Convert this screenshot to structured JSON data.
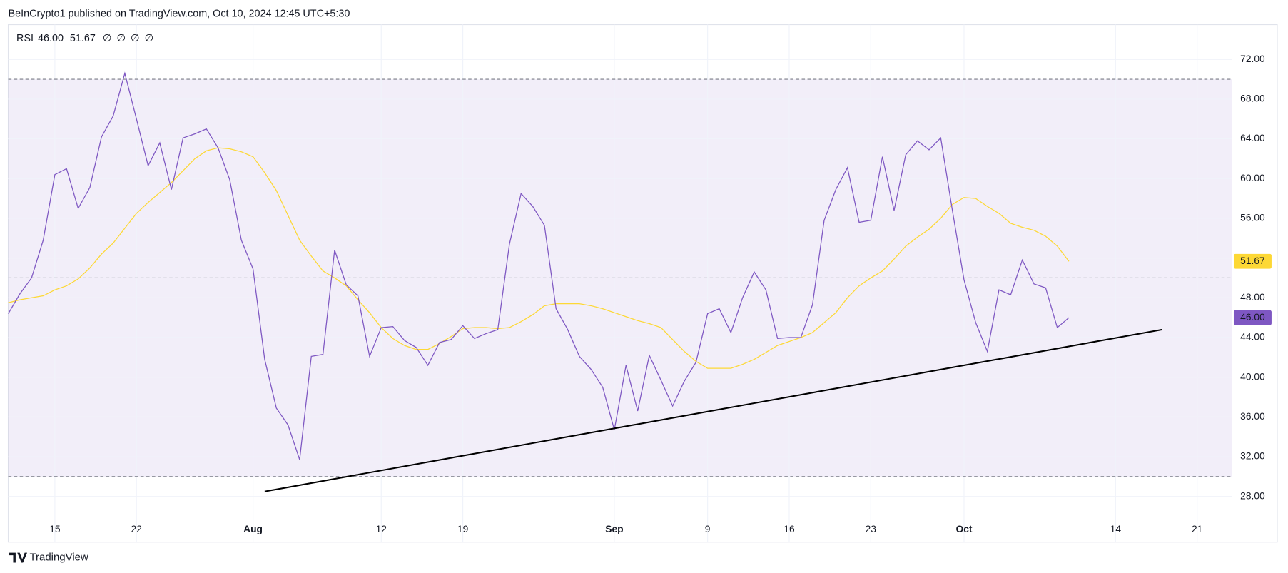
{
  "header": {
    "publisher": "BeInCrypto1 published on TradingView.com, Oct 10, 2024 12:45 UTC+5:30"
  },
  "legend": {
    "indicator": "RSI",
    "placeholders": [
      "∅",
      "∅",
      "∅",
      "∅"
    ]
  },
  "chart_data": {
    "type": "line",
    "x": [
      "07-11",
      "07-12",
      "07-13",
      "07-14",
      "07-15",
      "07-16",
      "07-17",
      "07-18",
      "07-19",
      "07-20",
      "07-21",
      "07-22",
      "07-23",
      "07-24",
      "07-25",
      "07-26",
      "07-27",
      "07-28",
      "07-29",
      "07-30",
      "07-31",
      "08-01",
      "08-02",
      "08-03",
      "08-04",
      "08-05",
      "08-06",
      "08-07",
      "08-08",
      "08-09",
      "08-10",
      "08-11",
      "08-12",
      "08-13",
      "08-14",
      "08-15",
      "08-16",
      "08-17",
      "08-18",
      "08-19",
      "08-20",
      "08-21",
      "08-22",
      "08-23",
      "08-24",
      "08-25",
      "08-26",
      "08-27",
      "08-28",
      "08-29",
      "08-30",
      "08-31",
      "09-01",
      "09-02",
      "09-03",
      "09-04",
      "09-05",
      "09-06",
      "09-07",
      "09-08",
      "09-09",
      "09-10",
      "09-11",
      "09-12",
      "09-13",
      "09-14",
      "09-15",
      "09-16",
      "09-17",
      "09-18",
      "09-19",
      "09-20",
      "09-21",
      "09-22",
      "09-23",
      "09-24",
      "09-25",
      "09-26",
      "09-27",
      "09-28",
      "09-29",
      "09-30",
      "10-01",
      "10-02",
      "10-03",
      "10-04",
      "10-05",
      "10-06",
      "10-07",
      "10-08",
      "10-09",
      "10-10"
    ],
    "series": [
      {
        "color": "#7e57c2",
        "values": [
          46.4,
          48.4,
          50.0,
          53.8,
          60.4,
          61.0,
          57.0,
          59.1,
          64.2,
          66.3,
          70.6,
          66.0,
          61.3,
          63.6,
          58.9,
          64.1,
          64.5,
          65.0,
          63.1,
          59.9,
          53.8,
          50.9,
          41.8,
          36.9,
          35.2,
          31.7,
          42.1,
          42.3,
          52.8,
          49.3,
          48.2,
          42.1,
          45.0,
          45.1,
          43.7,
          43.0,
          41.2,
          43.5,
          43.8,
          45.2,
          43.9,
          44.4,
          44.8,
          53.4,
          58.5,
          57.2,
          55.3,
          46.9,
          44.8,
          42.1,
          40.8,
          39.0,
          34.7,
          41.2,
          36.6,
          42.2,
          39.7,
          37.1,
          39.6,
          41.5,
          46.4,
          46.9,
          44.5,
          48.0,
          50.6,
          48.8,
          43.9,
          44.0,
          44.0,
          47.3,
          55.8,
          58.9,
          61.1,
          55.6,
          55.8,
          62.2,
          56.8,
          62.4,
          63.8,
          62.9,
          64.1,
          56.8,
          49.8,
          45.5,
          42.6,
          48.8,
          48.3,
          51.8,
          49.4,
          49.0,
          45.0,
          46
        ],
        "value_labels": [
          null,
          null,
          null,
          null,
          null,
          null,
          null,
          null,
          null,
          null,
          null,
          null,
          null,
          null,
          null,
          null,
          null,
          null,
          null,
          null,
          null,
          null,
          null,
          null,
          null,
          null,
          null,
          null,
          null,
          null,
          null,
          null,
          null,
          null,
          null,
          null,
          null,
          null,
          null,
          null,
          null,
          null,
          null,
          null,
          null,
          null,
          null,
          null,
          null,
          null,
          null,
          null,
          null,
          null,
          null,
          null,
          null,
          null,
          null,
          null,
          null,
          null,
          null,
          null,
          null,
          null,
          null,
          null,
          null,
          null,
          null,
          null,
          null,
          null,
          null,
          null,
          null,
          null,
          null,
          null,
          null,
          null,
          null,
          null,
          null,
          null,
          null,
          null,
          null,
          null,
          null,
          "46.00"
        ]
      },
      {
        "color": "#fdd835",
        "values": [
          47.5,
          47.8,
          48.0,
          48.2,
          48.8,
          49.2,
          49.9,
          51.0,
          52.4,
          53.5,
          55.0,
          56.5,
          57.6,
          58.6,
          59.6,
          60.8,
          62.0,
          62.8,
          63.1,
          63.0,
          62.7,
          62.2,
          60.6,
          58.8,
          56.3,
          53.8,
          52.2,
          50.7,
          50.0,
          49.2,
          47.8,
          46.5,
          45.0,
          43.9,
          43.2,
          42.8,
          42.8,
          43.4,
          44.1,
          44.9,
          45.0,
          45.0,
          44.9,
          45.0,
          45.6,
          46.3,
          47.2,
          47.4,
          47.4,
          47.4,
          47.2,
          46.9,
          46.5,
          46.1,
          45.7,
          45.4,
          45.0,
          43.8,
          42.6,
          41.6,
          40.9,
          40.9,
          40.9,
          41.3,
          41.8,
          42.5,
          43.2,
          43.6,
          44.0,
          44.5,
          45.5,
          46.5,
          48.0,
          49.2,
          50.0,
          50.7,
          51.9,
          53.2,
          54.1,
          54.9,
          56.0,
          57.4,
          58.1,
          58.0,
          57.2,
          56.5,
          55.5,
          55.1,
          54.8,
          54.2,
          53.2,
          51.67
        ]
      }
    ],
    "xlim": [
      "07-11",
      "10-24"
    ],
    "ylim": [
      23.4,
      75.5
    ],
    "xticks": [
      {
        "value": "07-15",
        "label": "15"
      },
      {
        "value": "07-22",
        "label": "22"
      },
      {
        "value": "08-01",
        "label": "Aug"
      },
      {
        "value": "08-12",
        "label": "12"
      },
      {
        "value": "08-19",
        "label": "19"
      },
      {
        "value": "09-01",
        "label": "Sep"
      },
      {
        "value": "09-09",
        "label": "9"
      },
      {
        "value": "09-16",
        "label": "16"
      },
      {
        "value": "09-23",
        "label": "23"
      },
      {
        "value": "10-01",
        "label": "Oct"
      },
      {
        "value": "10-14",
        "label": "14"
      },
      {
        "value": "10-21",
        "label": "21"
      }
    ],
    "yticks": [
      {
        "value": 28,
        "label": "28.00"
      },
      {
        "value": 32,
        "label": "32.00"
      },
      {
        "value": 36,
        "label": "36.00"
      },
      {
        "value": 40,
        "label": "40.00"
      },
      {
        "value": 44,
        "label": "44.00"
      },
      {
        "value": 48,
        "label": "48.00"
      },
      {
        "value": 52,
        "label": "52.00"
      },
      {
        "value": 56,
        "label": "56.00"
      },
      {
        "value": 60,
        "label": "60.00"
      },
      {
        "value": 64,
        "label": "64.00"
      },
      {
        "value": 68,
        "label": "68.00"
      },
      {
        "value": 72,
        "label": "72.00"
      }
    ],
    "grid": true,
    "bands": {
      "upper": 70,
      "middle": 50,
      "lower": 30
    },
    "band_color": "#7e57c2",
    "trendline": {
      "x": [
        "08-02",
        "10-18"
      ],
      "values": [
        28.5,
        44.8
      ],
      "color": "#000000"
    }
  },
  "footer": {
    "brand": "TradingView"
  }
}
